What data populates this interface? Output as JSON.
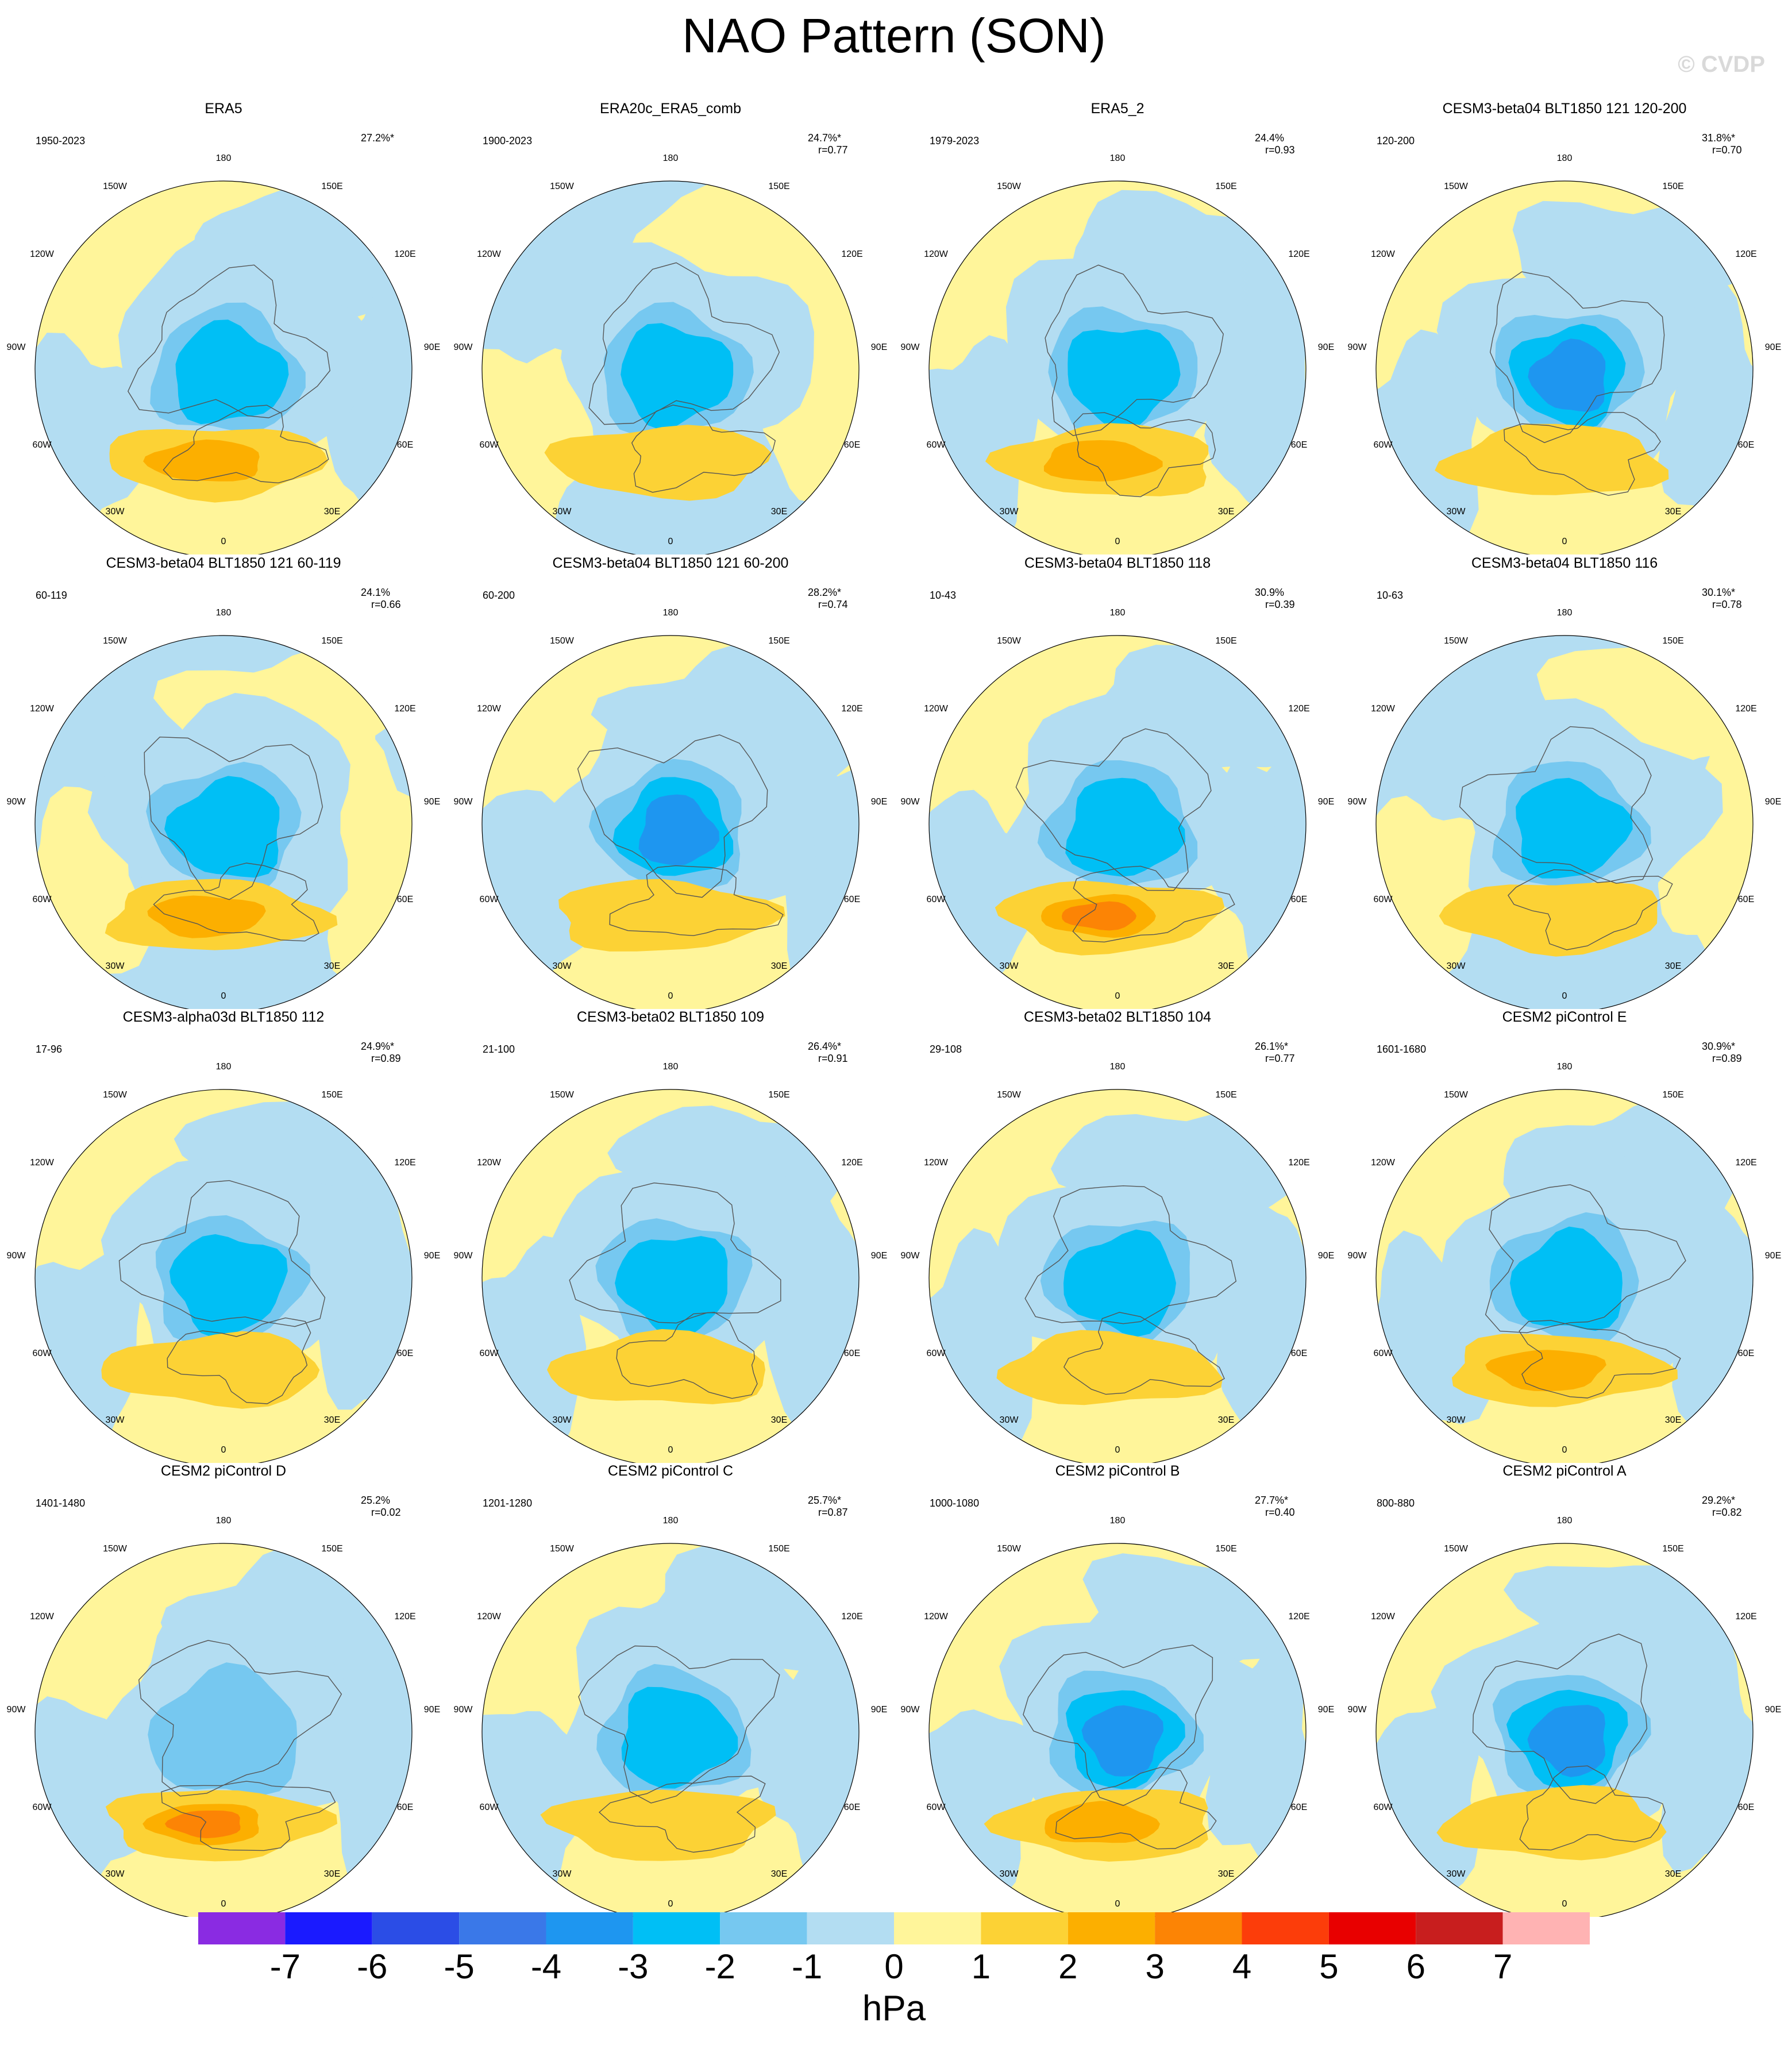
{
  "title": "NAO Pattern (SON)",
  "watermark": "© CVDP",
  "units": "hPa",
  "lon_labels": [
    "180",
    "150E",
    "120E",
    "90E",
    "60E",
    "30E",
    "0",
    "30W",
    "60W",
    "90W",
    "120W",
    "150W"
  ],
  "colors": {
    "coast": "#555555",
    "levels": [
      "#8A2BE2",
      "#1A1AFF",
      "#2B4DE6",
      "#3A78E8",
      "#1E96F0",
      "#00BFF5",
      "#76C8F0",
      "#B3DDF2",
      "#FFF59A",
      "#FCD235",
      "#FCAF00",
      "#FC8405",
      "#FC3D0A",
      "#E80000",
      "#C81E1E",
      "#FFB3B3"
    ]
  },
  "colorbar": {
    "labels": [
      "-7",
      "-6",
      "-5",
      "-4",
      "-3",
      "-2",
      "-1",
      "0",
      "1",
      "2",
      "3",
      "4",
      "5",
      "6",
      "7"
    ]
  },
  "panels": [
    {
      "name": "ERA5",
      "period": "1950-2023",
      "pct": "27.2%*",
      "corr": "",
      "low": -3,
      "high": 2.5,
      "bg": "pos"
    },
    {
      "name": "ERA20c_ERA5_comb",
      "period": "1900-2023",
      "pct": "24.7%*",
      "corr": "r=0.77",
      "low": -3,
      "high": 1,
      "bg": "neg"
    },
    {
      "name": "ERA5_2",
      "period": "1979-2023",
      "pct": "24.4%",
      "corr": "r=0.93",
      "low": -2.5,
      "high": 2.5,
      "bg": "pos"
    },
    {
      "name": "CESM3-beta04 BLT1850 121 120-200",
      "period": "120-200",
      "pct": "31.8%*",
      "corr": "r=0.70",
      "low": -3.5,
      "high": 1.5,
      "bg": "pos"
    },
    {
      "name": "CESM3-beta04 BLT1850 121 60-119",
      "period": "60-119",
      "pct": "24.1%",
      "corr": "r=0.66",
      "low": -3,
      "high": 2.5,
      "bg": "neg"
    },
    {
      "name": "CESM3-beta04 BLT1850 121 60-200",
      "period": "60-200",
      "pct": "28.2%*",
      "corr": "r=0.74",
      "low": -3.5,
      "high": 1.5,
      "bg": "pos"
    },
    {
      "name": "CESM3-beta04 BLT1850 118",
      "period": "10-43",
      "pct": "30.9%",
      "corr": "r=0.39",
      "low": -2.5,
      "high": 3.5,
      "bg": "pos"
    },
    {
      "name": "CESM3-beta04 BLT1850 116",
      "period": "10-63",
      "pct": "30.1%*",
      "corr": "r=0.78",
      "low": -3,
      "high": 1.5,
      "bg": "neg"
    },
    {
      "name": "CESM3-alpha03d BLT1850 112",
      "period": "17-96",
      "pct": "24.9%*",
      "corr": "r=0.89",
      "low": -3,
      "high": 1.5,
      "bg": "pos"
    },
    {
      "name": "CESM3-beta02 BLT1850 109",
      "period": "21-100",
      "pct": "26.4%*",
      "corr": "r=0.91",
      "low": -3,
      "high": 1.5,
      "bg": "pos"
    },
    {
      "name": "CESM3-beta02 BLT1850 104",
      "period": "29-108",
      "pct": "26.1%*",
      "corr": "r=0.77",
      "low": -3,
      "high": 1.5,
      "bg": "pos"
    },
    {
      "name": "CESM2 piControl E",
      "period": "1601-1680",
      "pct": "30.9%*",
      "corr": "r=0.89",
      "low": -3,
      "high": 2.5,
      "bg": "pos"
    },
    {
      "name": "CESM2 piControl D",
      "period": "1401-1480",
      "pct": "25.2%",
      "corr": "r=0.02",
      "low": -2,
      "high": 3.5,
      "bg": "pos"
    },
    {
      "name": "CESM2 piControl C",
      "period": "1201-1280",
      "pct": "25.7%*",
      "corr": "r=0.87",
      "low": -3,
      "high": 1.5,
      "bg": "pos"
    },
    {
      "name": "CESM2 piControl B",
      "period": "1000-1080",
      "pct": "27.7%*",
      "corr": "r=0.40",
      "low": -4,
      "high": 2.5,
      "bg": "pos"
    },
    {
      "name": "CESM2 piControl A",
      "period": "800-880",
      "pct": "29.2%*",
      "corr": "r=0.82",
      "low": -4,
      "high": 1.5,
      "bg": "pos"
    }
  ]
}
